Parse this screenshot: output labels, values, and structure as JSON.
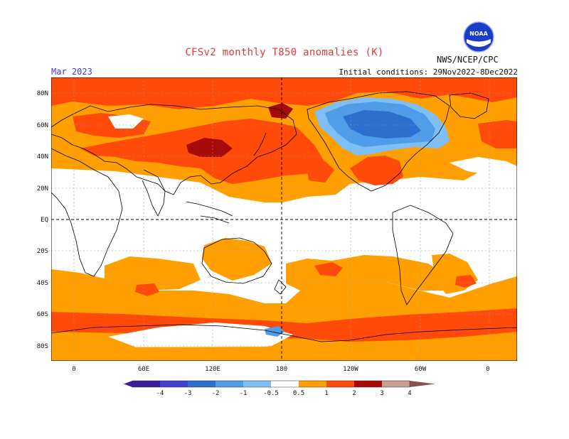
{
  "header": {
    "title": "CFSv2 monthly T850 anomalies (K)",
    "month": "Mar 2023",
    "initial_conditions": "Initial conditions: 29Nov2022-8Dec2022",
    "agency": "NWS/NCEP/CPC",
    "logo_text": "NOAA"
  },
  "map": {
    "projection": "cylindrical equidistant",
    "lat_labels": [
      "80N",
      "60N",
      "40N",
      "20N",
      "EQ",
      "20S",
      "40S",
      "60S",
      "80S"
    ],
    "lon_labels": [
      "0",
      "60E",
      "120E",
      "180",
      "120W",
      "60W",
      "0"
    ],
    "dashed_reference_lines": [
      "EQ",
      "180"
    ],
    "anomaly_regions": [
      {
        "region": "North America (Canada / N USA)",
        "anomaly": "-1 to -3",
        "sign": "cold"
      },
      {
        "region": "Central Siberia / Mongolia",
        "anomaly": "2 to 3",
        "sign": "warm"
      },
      {
        "region": "Eastern Siberia / Bering",
        "anomaly": "2 to 3",
        "sign": "warm"
      },
      {
        "region": "Southeastern United States",
        "anomaly": "1 to 2",
        "sign": "warm"
      },
      {
        "region": "Southern Ocean belt",
        "anomaly": "1 to 2",
        "sign": "warm"
      },
      {
        "region": "Antarctic coast near 180",
        "anomaly": "-0.5 to -1",
        "sign": "cold"
      }
    ]
  },
  "colorbar": {
    "labels": [
      "-4",
      "-3",
      "-2",
      "-1",
      "-0.5",
      "0.5",
      "1",
      "2",
      "3",
      "4"
    ],
    "colors": [
      "#3a1f9a",
      "#3f3fd0",
      "#2c6fcf",
      "#4f9de8",
      "#7ec0f5",
      "#ffffff",
      "#ffa000",
      "#ff4a0a",
      "#a80a0a",
      "#c8a090",
      "#8a5050"
    ]
  },
  "colors": {
    "warm_light": "#ffa000",
    "warm_mid": "#ff4a0a",
    "warm_dark": "#a80a0a",
    "cold_light": "#7ec0f5",
    "cold_mid": "#4f9de8",
    "cold_dark": "#2c6fcf",
    "title": "#e23a3a",
    "month": "#3b3bd0"
  }
}
